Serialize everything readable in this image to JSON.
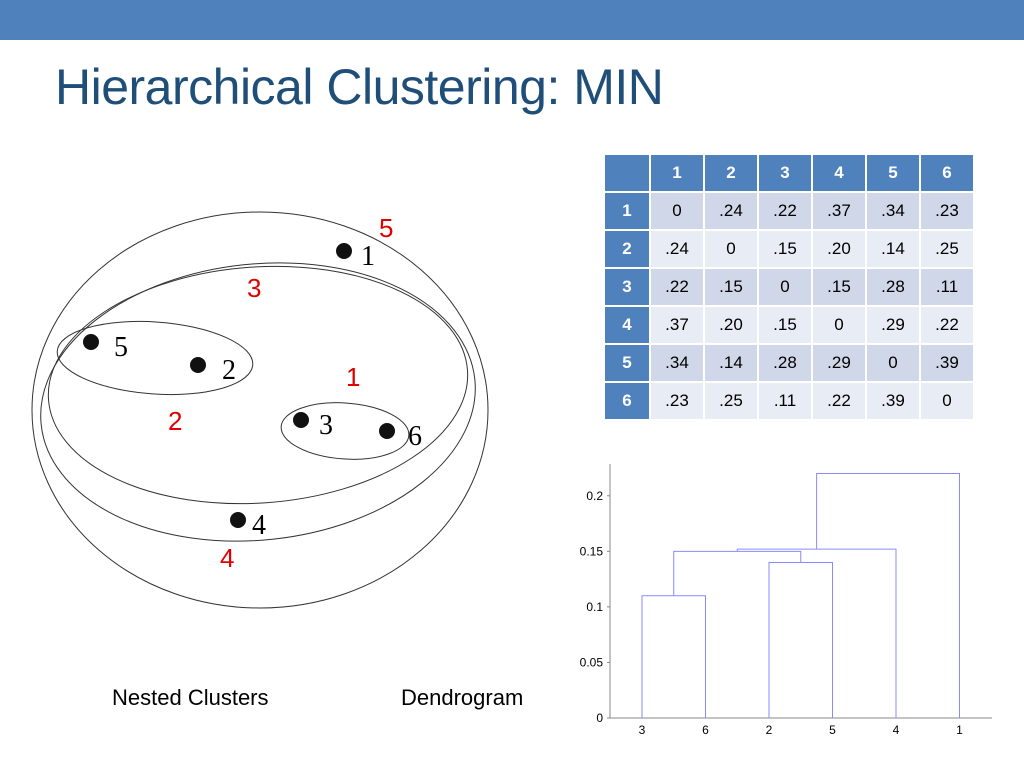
{
  "title": "Hierarchical Clustering: MIN",
  "colors": {
    "bar": "#4f81bd",
    "title": "#1f4e79",
    "red_label": "#e00000",
    "dendro_line": "#8a8aff"
  },
  "nested_clusters": {
    "caption": "Nested Clusters",
    "points": [
      "1",
      "2",
      "3",
      "4",
      "5",
      "6"
    ],
    "cluster_order_labels": [
      "1",
      "2",
      "3",
      "4",
      "5"
    ]
  },
  "distance_matrix": {
    "headers": [
      "1",
      "2",
      "3",
      "4",
      "5",
      "6"
    ],
    "rows": [
      {
        "label": "1",
        "values": [
          "0",
          ".24",
          ".22",
          ".37",
          ".34",
          ".23"
        ]
      },
      {
        "label": "2",
        "values": [
          ".24",
          "0",
          ".15",
          ".20",
          ".14",
          ".25"
        ]
      },
      {
        "label": "3",
        "values": [
          ".22",
          ".15",
          "0",
          ".15",
          ".28",
          ".11"
        ]
      },
      {
        "label": "4",
        "values": [
          ".37",
          ".20",
          ".15",
          "0",
          ".29",
          ".22"
        ]
      },
      {
        "label": "5",
        "values": [
          ".34",
          ".14",
          ".28",
          ".29",
          "0",
          ".39"
        ]
      },
      {
        "label": "6",
        "values": [
          ".23",
          ".25",
          ".11",
          ".22",
          ".39",
          "0"
        ]
      }
    ]
  },
  "dendrogram": {
    "caption": "Dendrogram",
    "leaf_order": [
      "3",
      "6",
      "2",
      "5",
      "4",
      "1"
    ],
    "y_ticks": [
      "0",
      "0.05",
      "0.1",
      "0.15",
      "0.2"
    ],
    "y_tick_values": [
      0,
      0.05,
      0.1,
      0.15,
      0.2
    ],
    "ylim": [
      0,
      0.225
    ],
    "merges": [
      {
        "a": "3",
        "b": "6",
        "height": 0.11
      },
      {
        "a": "2",
        "b": "5",
        "height": 0.14
      },
      {
        "a": "36",
        "b": "25",
        "height": 0.15
      },
      {
        "a": "3625",
        "b": "4",
        "height": 0.152
      },
      {
        "a": "36254",
        "b": "1",
        "height": 0.22
      }
    ]
  }
}
